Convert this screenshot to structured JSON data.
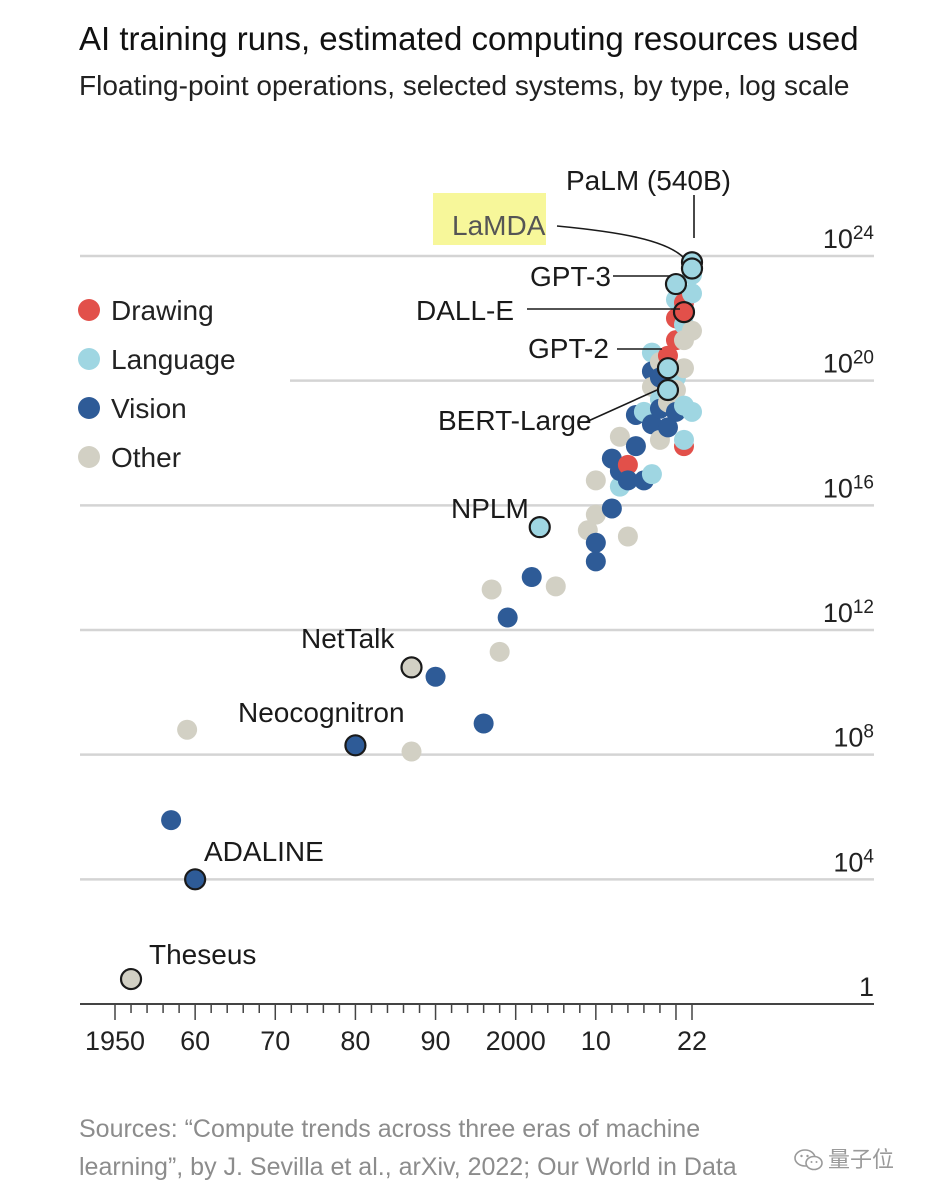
{
  "chart_data": {
    "type": "scatter",
    "title": "AI training runs, estimated computing resources used",
    "subtitle": "Floating-point operations, selected systems, by type, log scale",
    "yscale": "log",
    "ylim_exponent": [
      0,
      24
    ],
    "y_ticks": [
      {
        "exp": 0,
        "base": "1",
        "sup": ""
      },
      {
        "exp": 4,
        "base": "10",
        "sup": "4"
      },
      {
        "exp": 8,
        "base": "10",
        "sup": "8"
      },
      {
        "exp": 12,
        "base": "10",
        "sup": "12"
      },
      {
        "exp": 16,
        "base": "10",
        "sup": "16"
      },
      {
        "exp": 20,
        "base": "10",
        "sup": "20"
      },
      {
        "exp": 24,
        "base": "10",
        "sup": "24"
      }
    ],
    "xlim": [
      1950,
      2022
    ],
    "x_ticks": [
      {
        "year": 1950,
        "label": "1950"
      },
      {
        "year": 1960,
        "label": "60"
      },
      {
        "year": 1970,
        "label": "70"
      },
      {
        "year": 1980,
        "label": "80"
      },
      {
        "year": 1990,
        "label": "90"
      },
      {
        "year": 2000,
        "label": "2000"
      },
      {
        "year": 2010,
        "label": "10"
      },
      {
        "year": 2022,
        "label": "22"
      }
    ],
    "grid": true,
    "legend_position": "top-left",
    "categories": [
      {
        "key": "drawing",
        "label": "Drawing",
        "color": "#e2504a"
      },
      {
        "key": "language",
        "label": "Language",
        "color": "#9fd6e2"
      },
      {
        "key": "vision",
        "label": "Vision",
        "color": "#2e5b97"
      },
      {
        "key": "other",
        "label": "Other",
        "color": "#d2d0c4"
      }
    ],
    "points": [
      {
        "x": 1952,
        "exp": 0.8,
        "type": "other",
        "label": "Theseus"
      },
      {
        "x": 1957,
        "exp": 5.9,
        "type": "vision"
      },
      {
        "x": 1959,
        "exp": 8.8,
        "type": "other"
      },
      {
        "x": 1960,
        "exp": 4.0,
        "type": "vision",
        "label": "ADALINE"
      },
      {
        "x": 1980,
        "exp": 8.3,
        "type": "vision",
        "label": "Neocognitron"
      },
      {
        "x": 1987,
        "exp": 8.1,
        "type": "other"
      },
      {
        "x": 1987,
        "exp": 10.8,
        "type": "other",
        "label": "NetTalk"
      },
      {
        "x": 1990,
        "exp": 10.5,
        "type": "vision"
      },
      {
        "x": 1996,
        "exp": 9.0,
        "type": "vision"
      },
      {
        "x": 1997,
        "exp": 13.3,
        "type": "other"
      },
      {
        "x": 1998,
        "exp": 11.3,
        "type": "other"
      },
      {
        "x": 1999,
        "exp": 12.4,
        "type": "vision"
      },
      {
        "x": 2002,
        "exp": 13.7,
        "type": "vision"
      },
      {
        "x": 2003,
        "exp": 15.3,
        "type": "language",
        "label": "NPLM"
      },
      {
        "x": 2005,
        "exp": 13.4,
        "type": "other"
      },
      {
        "x": 2009,
        "exp": 15.2,
        "type": "other"
      },
      {
        "x": 2010,
        "exp": 14.2,
        "type": "vision"
      },
      {
        "x": 2010,
        "exp": 14.8,
        "type": "vision"
      },
      {
        "x": 2010,
        "exp": 15.7,
        "type": "other"
      },
      {
        "x": 2010,
        "exp": 16.8,
        "type": "other"
      },
      {
        "x": 2012,
        "exp": 15.9,
        "type": "vision"
      },
      {
        "x": 2012,
        "exp": 17.5,
        "type": "vision"
      },
      {
        "x": 2013,
        "exp": 16.6,
        "type": "language"
      },
      {
        "x": 2013,
        "exp": 17.1,
        "type": "vision"
      },
      {
        "x": 2013,
        "exp": 18.2,
        "type": "other"
      },
      {
        "x": 2014,
        "exp": 15.0,
        "type": "other"
      },
      {
        "x": 2014,
        "exp": 17.3,
        "type": "drawing"
      },
      {
        "x": 2014,
        "exp": 16.8,
        "type": "vision"
      },
      {
        "x": 2015,
        "exp": 17.9,
        "type": "vision"
      },
      {
        "x": 2015,
        "exp": 18.9,
        "type": "vision"
      },
      {
        "x": 2016,
        "exp": 19.0,
        "type": "language"
      },
      {
        "x": 2016,
        "exp": 16.8,
        "type": "vision"
      },
      {
        "x": 2017,
        "exp": 20.9,
        "type": "language"
      },
      {
        "x": 2017,
        "exp": 17.0,
        "type": "language"
      },
      {
        "x": 2017,
        "exp": 20.3,
        "type": "vision"
      },
      {
        "x": 2017,
        "exp": 19.8,
        "type": "other"
      },
      {
        "x": 2017,
        "exp": 18.6,
        "type": "vision"
      },
      {
        "x": 2018,
        "exp": 19.4,
        "type": "language"
      },
      {
        "x": 2018,
        "exp": 20.6,
        "type": "other"
      },
      {
        "x": 2018,
        "exp": 19.1,
        "type": "vision"
      },
      {
        "x": 2018,
        "exp": 18.1,
        "type": "other"
      },
      {
        "x": 2018,
        "exp": 20.1,
        "type": "vision"
      },
      {
        "x": 2019,
        "exp": 19.7,
        "type": "language",
        "label": "BERT-Large"
      },
      {
        "x": 2019,
        "exp": 20.4,
        "type": "language",
        "label": "GPT-2"
      },
      {
        "x": 2019,
        "exp": 18.5,
        "type": "vision"
      },
      {
        "x": 2019,
        "exp": 20.8,
        "type": "drawing"
      },
      {
        "x": 2019,
        "exp": 19.3,
        "type": "other"
      },
      {
        "x": 2020,
        "exp": 19.0,
        "type": "vision"
      },
      {
        "x": 2020,
        "exp": 23.1,
        "type": "language",
        "label": "GPT-3"
      },
      {
        "x": 2020,
        "exp": 21.3,
        "type": "drawing"
      },
      {
        "x": 2020,
        "exp": 22.0,
        "type": "drawing"
      },
      {
        "x": 2020,
        "exp": 22.6,
        "type": "language"
      },
      {
        "x": 2020,
        "exp": 20.1,
        "type": "language"
      },
      {
        "x": 2020,
        "exp": 19.7,
        "type": "other"
      },
      {
        "x": 2021,
        "exp": 22.2,
        "type": "drawing",
        "label": "DALL-E"
      },
      {
        "x": 2021,
        "exp": 22.5,
        "type": "drawing"
      },
      {
        "x": 2021,
        "exp": 21.8,
        "type": "language"
      },
      {
        "x": 2021,
        "exp": 21.3,
        "type": "other"
      },
      {
        "x": 2021,
        "exp": 20.4,
        "type": "other"
      },
      {
        "x": 2021,
        "exp": 19.2,
        "type": "language"
      },
      {
        "x": 2021,
        "exp": 17.9,
        "type": "drawing"
      },
      {
        "x": 2021,
        "exp": 18.1,
        "type": "language"
      },
      {
        "x": 2022,
        "exp": 23.4,
        "type": "language"
      },
      {
        "x": 2022,
        "exp": 22.8,
        "type": "language"
      },
      {
        "x": 2022,
        "exp": 21.6,
        "type": "other"
      },
      {
        "x": 2022,
        "exp": 19.0,
        "type": "language"
      },
      {
        "x": 2022,
        "exp": 23.8,
        "type": "language",
        "label": "PaLM (540B)"
      },
      {
        "x": 2022,
        "exp": 23.6,
        "type": "language",
        "label": "LaMDA",
        "highlight": true
      }
    ]
  },
  "footer": {
    "source": "Sources: “Compute trends across three eras of machine learning”, by J. Sevilla et al., arXiv, 2022; Our World in Data",
    "watermark": "量子位"
  }
}
